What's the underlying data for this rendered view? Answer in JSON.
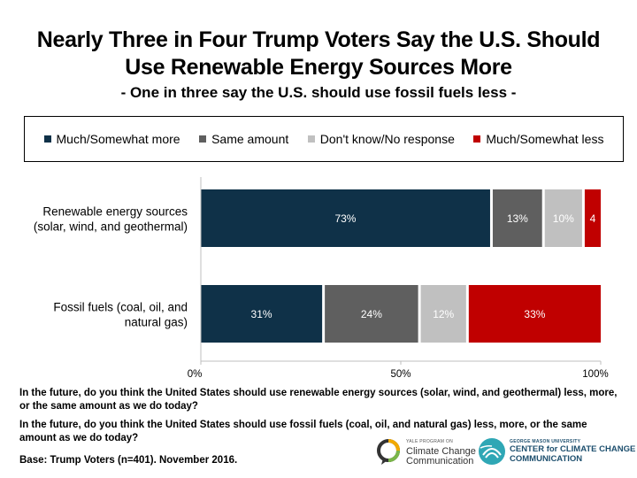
{
  "title_line1": "Nearly Three in Four Trump Voters Say the U.S. Should",
  "title_line2": "Use Renewable Energy Sources More",
  "subtitle": "- One in three say the U.S. should use fossil fuels less -",
  "colors": {
    "more": "#0f3148",
    "same": "#5f5f5f",
    "dontknow": "#c0c0c0",
    "less": "#c00000"
  },
  "chart_data": {
    "type": "bar",
    "orientation": "horizontal",
    "stacked": true,
    "categories": [
      [
        "Renewable energy sources",
        "(solar, wind, and geothermal)"
      ],
      [
        "Fossil fuels (coal, oil, and",
        "natural gas)"
      ]
    ],
    "series": [
      {
        "name": "Much/Somewhat more",
        "values": [
          73,
          31
        ],
        "labels": [
          "73%",
          "31%"
        ]
      },
      {
        "name": "Same amount",
        "values": [
          13,
          24
        ],
        "labels": [
          "13%",
          "24%"
        ]
      },
      {
        "name": "Don't know/No response",
        "values": [
          10,
          12
        ],
        "labels": [
          "10%",
          "12%"
        ]
      },
      {
        "name": "Much/Somewhat less",
        "values": [
          4,
          33
        ],
        "labels": [
          "4",
          "33%"
        ]
      }
    ],
    "xlim": [
      0,
      100
    ],
    "xticks": [
      "0%",
      "50%",
      "100%"
    ],
    "legend_position": "top",
    "grid": false
  },
  "question1": "In the future, do you think the United States should use renewable energy sources (solar, wind, and geothermal) less, more, or the same amount as we do today?",
  "question2": "In the future, do you think the United States should use fossil fuels (coal, oil, and natural gas) less, more, or the same amount as we do today?",
  "base": "Base: Trump Voters (n=401). November 2016.",
  "logo_yale": {
    "line1": "YALE PROGRAM ON",
    "line2": "Climate Change",
    "line3": "Communication"
  },
  "logo_gmu": {
    "line1": "GEORGE MASON UNIVERSITY",
    "line2": "CENTER for CLIMATE CHANGE",
    "line3": "COMMUNICATION"
  }
}
